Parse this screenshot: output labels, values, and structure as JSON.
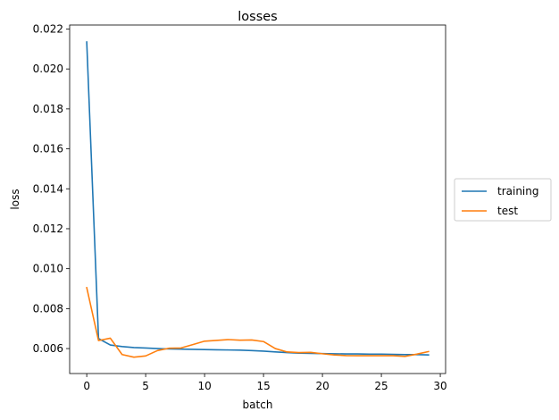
{
  "chart_data": {
    "type": "line",
    "title": "losses",
    "xlabel": "batch",
    "ylabel": "loss",
    "xlim": [
      -1.45,
      30.45
    ],
    "ylim": [
      0.00475,
      0.0222
    ],
    "xticks": [
      0,
      5,
      10,
      15,
      20,
      25,
      30
    ],
    "xtick_labels": [
      "0",
      "5",
      "10",
      "15",
      "20",
      "25",
      "30"
    ],
    "yticks": [
      0.006,
      0.008,
      0.01,
      0.012,
      0.014,
      0.016,
      0.018,
      0.02,
      0.022
    ],
    "ytick_labels": [
      "0.006",
      "0.008",
      "0.010",
      "0.012",
      "0.014",
      "0.016",
      "0.018",
      "0.020",
      "0.022"
    ],
    "grid": false,
    "legend_position": "outside-right",
    "x": [
      0,
      1,
      2,
      3,
      4,
      5,
      6,
      7,
      8,
      9,
      10,
      11,
      12,
      13,
      14,
      15,
      16,
      17,
      18,
      19,
      20,
      21,
      22,
      23,
      24,
      25,
      26,
      27,
      28,
      29
    ],
    "series": [
      {
        "name": "training",
        "color": "#1f77b4",
        "values": [
          0.02135,
          0.0065,
          0.00618,
          0.0061,
          0.00605,
          0.00603,
          0.006,
          0.00598,
          0.00597,
          0.00596,
          0.00595,
          0.00594,
          0.00593,
          0.00592,
          0.0059,
          0.00587,
          0.00583,
          0.0058,
          0.00577,
          0.00576,
          0.00575,
          0.00574,
          0.00573,
          0.00573,
          0.00572,
          0.00572,
          0.00571,
          0.0057,
          0.0057,
          0.00568
        ]
      },
      {
        "name": "test",
        "color": "#ff7f0e",
        "values": [
          0.00905,
          0.0064,
          0.00652,
          0.0057,
          0.00557,
          0.00563,
          0.0059,
          0.00602,
          0.00603,
          0.0062,
          0.00637,
          0.00641,
          0.00645,
          0.00642,
          0.00643,
          0.00635,
          0.006,
          0.00583,
          0.0058,
          0.00581,
          0.00574,
          0.00568,
          0.00565,
          0.00564,
          0.00564,
          0.00564,
          0.00564,
          0.00561,
          0.00572,
          0.00585
        ]
      }
    ]
  }
}
